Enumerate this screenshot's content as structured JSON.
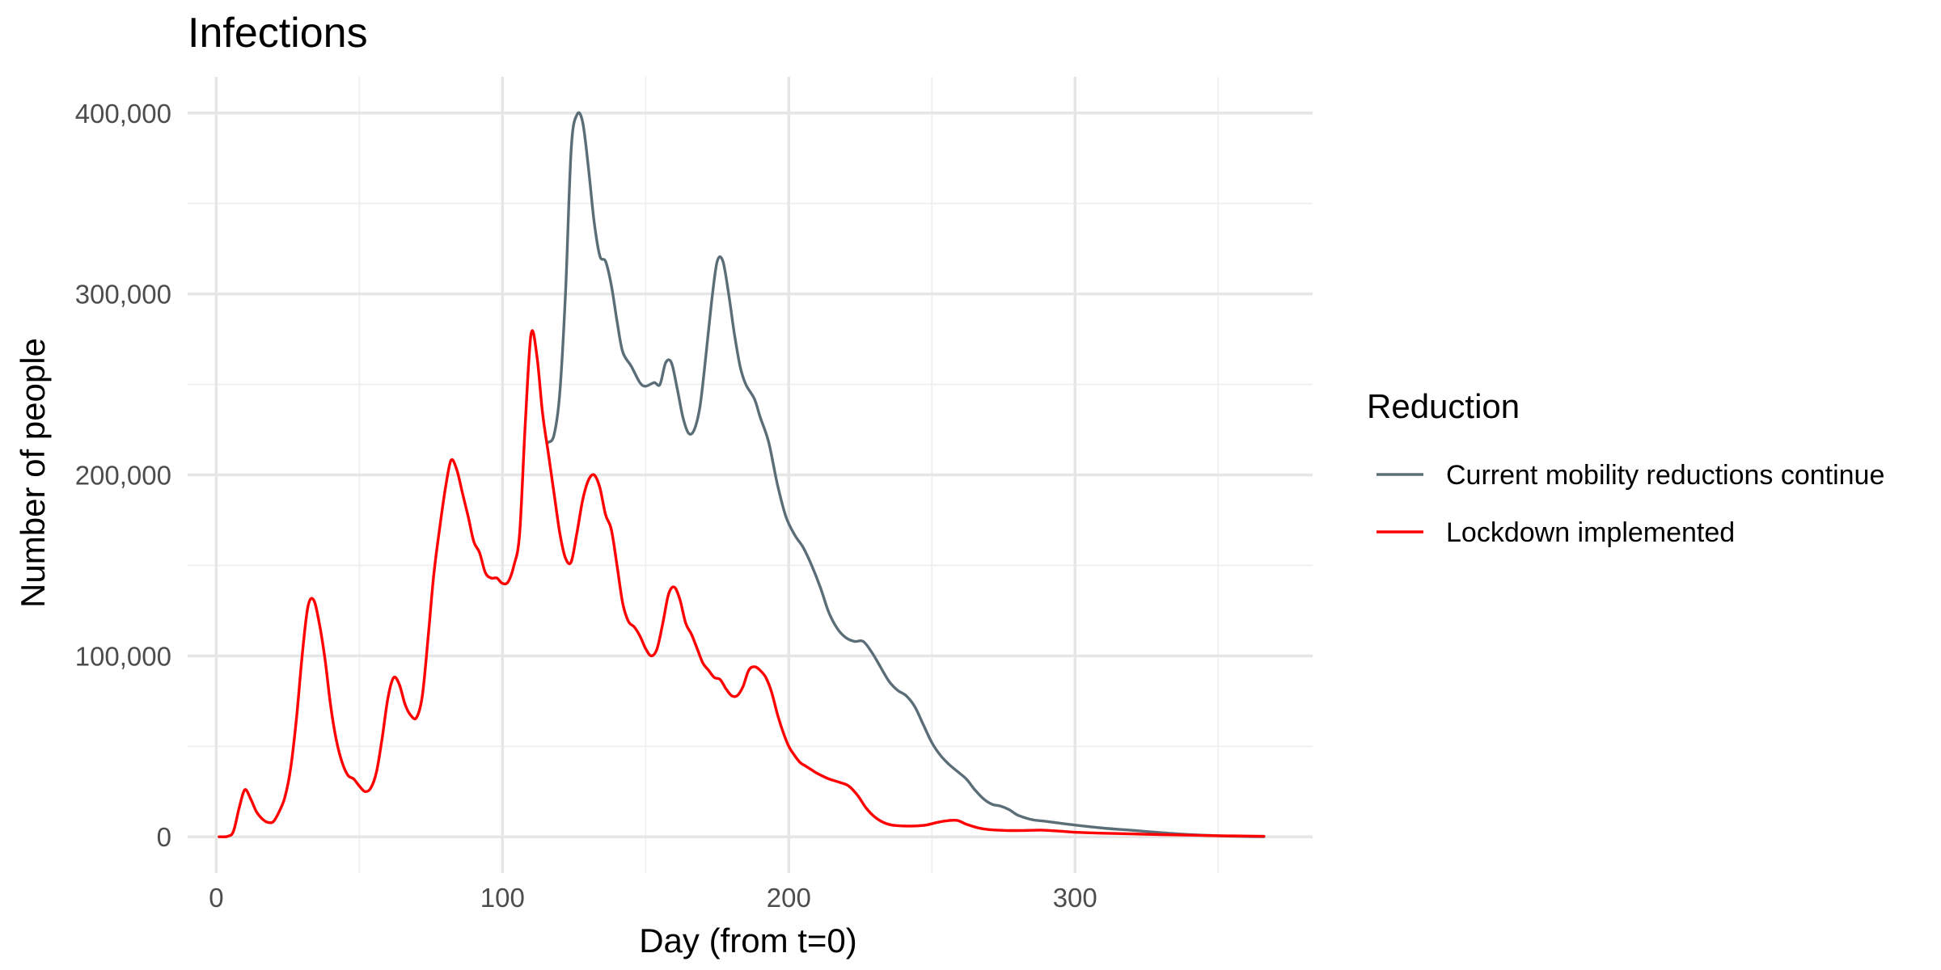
{
  "chart_data": {
    "type": "line",
    "title": "Infections",
    "xlabel": "Day (from t=0)",
    "ylabel": "Number of people",
    "xlim": [
      -10,
      383
    ],
    "ylim": [
      -20000,
      420000
    ],
    "x_ticks": [
      0,
      100,
      200,
      300
    ],
    "x_tick_labels": [
      "0",
      "100",
      "200",
      "300"
    ],
    "y_ticks": [
      0,
      100000,
      200000,
      300000,
      400000
    ],
    "y_tick_labels": [
      "0",
      "100,000",
      "200,000",
      "300,000",
      "400,000"
    ],
    "grid": true,
    "legend": {
      "title": "Reduction",
      "placement": "right"
    },
    "series": [
      {
        "name": "Current mobility reductions continue",
        "color": "#5b6e78",
        "points": [
          [
            116,
            218000
          ],
          [
            118,
            222000
          ],
          [
            120,
            245000
          ],
          [
            122,
            300000
          ],
          [
            124,
            380000
          ],
          [
            126,
            399000
          ],
          [
            128,
            395000
          ],
          [
            130,
            370000
          ],
          [
            132,
            340000
          ],
          [
            134,
            321000
          ],
          [
            136,
            318000
          ],
          [
            138,
            305000
          ],
          [
            140,
            285000
          ],
          [
            142,
            268000
          ],
          [
            145,
            260000
          ],
          [
            148,
            251000
          ],
          [
            150,
            249000
          ],
          [
            153,
            251000
          ],
          [
            155,
            250000
          ],
          [
            157,
            262000
          ],
          [
            159,
            262000
          ],
          [
            161,
            248000
          ],
          [
            163,
            232000
          ],
          [
            165,
            223000
          ],
          [
            167,
            225000
          ],
          [
            169,
            238000
          ],
          [
            171,
            265000
          ],
          [
            173,
            295000
          ],
          [
            175,
            318000
          ],
          [
            177,
            318000
          ],
          [
            179,
            300000
          ],
          [
            181,
            278000
          ],
          [
            183,
            260000
          ],
          [
            185,
            250000
          ],
          [
            188,
            242000
          ],
          [
            190,
            232000
          ],
          [
            193,
            218000
          ],
          [
            196,
            195000
          ],
          [
            199,
            177000
          ],
          [
            202,
            167000
          ],
          [
            205,
            160000
          ],
          [
            208,
            150000
          ],
          [
            211,
            138000
          ],
          [
            214,
            124000
          ],
          [
            217,
            115000
          ],
          [
            220,
            110000
          ],
          [
            223,
            108000
          ],
          [
            226,
            108000
          ],
          [
            229,
            102000
          ],
          [
            232,
            94000
          ],
          [
            235,
            86000
          ],
          [
            238,
            81000
          ],
          [
            241,
            78000
          ],
          [
            244,
            72000
          ],
          [
            247,
            62000
          ],
          [
            250,
            52000
          ],
          [
            253,
            45000
          ],
          [
            256,
            40000
          ],
          [
            259,
            36000
          ],
          [
            262,
            32000
          ],
          [
            265,
            26000
          ],
          [
            268,
            21000
          ],
          [
            271,
            18000
          ],
          [
            274,
            17000
          ],
          [
            277,
            15000
          ],
          [
            280,
            12000
          ],
          [
            285,
            9500
          ],
          [
            290,
            8500
          ],
          [
            300,
            6500
          ],
          [
            310,
            4800
          ],
          [
            320,
            3600
          ],
          [
            330,
            2300
          ],
          [
            340,
            1200
          ],
          [
            350,
            600
          ],
          [
            360,
            200
          ],
          [
            366,
            100
          ]
        ]
      },
      {
        "name": "Lockdown implemented",
        "color": "#ff0000",
        "points": [
          [
            1,
            0
          ],
          [
            4,
            300
          ],
          [
            6,
            3000
          ],
          [
            8,
            16000
          ],
          [
            10,
            26000
          ],
          [
            12,
            21000
          ],
          [
            14,
            14000
          ],
          [
            16,
            10000
          ],
          [
            18,
            8000
          ],
          [
            20,
            8500
          ],
          [
            22,
            14000
          ],
          [
            24,
            22000
          ],
          [
            26,
            38000
          ],
          [
            28,
            65000
          ],
          [
            30,
            100000
          ],
          [
            32,
            127000
          ],
          [
            34,
            131000
          ],
          [
            36,
            118000
          ],
          [
            38,
            98000
          ],
          [
            40,
            72000
          ],
          [
            42,
            53000
          ],
          [
            44,
            41000
          ],
          [
            46,
            34000
          ],
          [
            48,
            32000
          ],
          [
            50,
            28000
          ],
          [
            52,
            25000
          ],
          [
            54,
            27000
          ],
          [
            56,
            36000
          ],
          [
            58,
            55000
          ],
          [
            60,
            77000
          ],
          [
            62,
            88000
          ],
          [
            64,
            84000
          ],
          [
            66,
            73000
          ],
          [
            68,
            67000
          ],
          [
            70,
            66000
          ],
          [
            72,
            78000
          ],
          [
            74,
            110000
          ],
          [
            76,
            145000
          ],
          [
            78,
            170000
          ],
          [
            80,
            192000
          ],
          [
            82,
            208000
          ],
          [
            84,
            203000
          ],
          [
            86,
            190000
          ],
          [
            88,
            177000
          ],
          [
            90,
            163000
          ],
          [
            92,
            157000
          ],
          [
            94,
            146000
          ],
          [
            96,
            143000
          ],
          [
            98,
            143000
          ],
          [
            100,
            140000
          ],
          [
            102,
            141000
          ],
          [
            104,
            150000
          ],
          [
            106,
            168000
          ],
          [
            108,
            230000
          ],
          [
            110,
            278000
          ],
          [
            112,
            266000
          ],
          [
            114,
            234000
          ],
          [
            116,
            212000
          ],
          [
            118,
            190000
          ],
          [
            120,
            168000
          ],
          [
            122,
            154000
          ],
          [
            124,
            152000
          ],
          [
            126,
            168000
          ],
          [
            128,
            186000
          ],
          [
            130,
            197000
          ],
          [
            132,
            200000
          ],
          [
            134,
            193000
          ],
          [
            136,
            178000
          ],
          [
            138,
            170000
          ],
          [
            140,
            150000
          ],
          [
            142,
            129000
          ],
          [
            144,
            119000
          ],
          [
            146,
            116000
          ],
          [
            148,
            111000
          ],
          [
            150,
            104000
          ],
          [
            152,
            100000
          ],
          [
            154,
            104000
          ],
          [
            156,
            118000
          ],
          [
            158,
            134000
          ],
          [
            160,
            138000
          ],
          [
            162,
            131000
          ],
          [
            164,
            118000
          ],
          [
            166,
            112000
          ],
          [
            168,
            104000
          ],
          [
            170,
            96000
          ],
          [
            172,
            92000
          ],
          [
            174,
            88000
          ],
          [
            176,
            87000
          ],
          [
            178,
            82000
          ],
          [
            180,
            78000
          ],
          [
            182,
            78000
          ],
          [
            184,
            83000
          ],
          [
            186,
            92000
          ],
          [
            188,
            94000
          ],
          [
            190,
            92000
          ],
          [
            192,
            88000
          ],
          [
            194,
            80000
          ],
          [
            196,
            68000
          ],
          [
            198,
            58000
          ],
          [
            200,
            50000
          ],
          [
            202,
            45000
          ],
          [
            204,
            41000
          ],
          [
            206,
            39000
          ],
          [
            208,
            37000
          ],
          [
            210,
            35000
          ],
          [
            214,
            32000
          ],
          [
            218,
            30000
          ],
          [
            221,
            28000
          ],
          [
            224,
            23000
          ],
          [
            227,
            16000
          ],
          [
            230,
            11000
          ],
          [
            233,
            8000
          ],
          [
            236,
            6500
          ],
          [
            240,
            6000
          ],
          [
            244,
            6000
          ],
          [
            248,
            6500
          ],
          [
            252,
            8000
          ],
          [
            256,
            9000
          ],
          [
            259,
            9000
          ],
          [
            262,
            7000
          ],
          [
            266,
            5000
          ],
          [
            270,
            4000
          ],
          [
            276,
            3500
          ],
          [
            282,
            3500
          ],
          [
            288,
            3700
          ],
          [
            294,
            3200
          ],
          [
            300,
            2500
          ],
          [
            310,
            2000
          ],
          [
            320,
            1600
          ],
          [
            330,
            1200
          ],
          [
            340,
            900
          ],
          [
            350,
            600
          ],
          [
            360,
            400
          ],
          [
            366,
            300
          ]
        ]
      }
    ]
  }
}
